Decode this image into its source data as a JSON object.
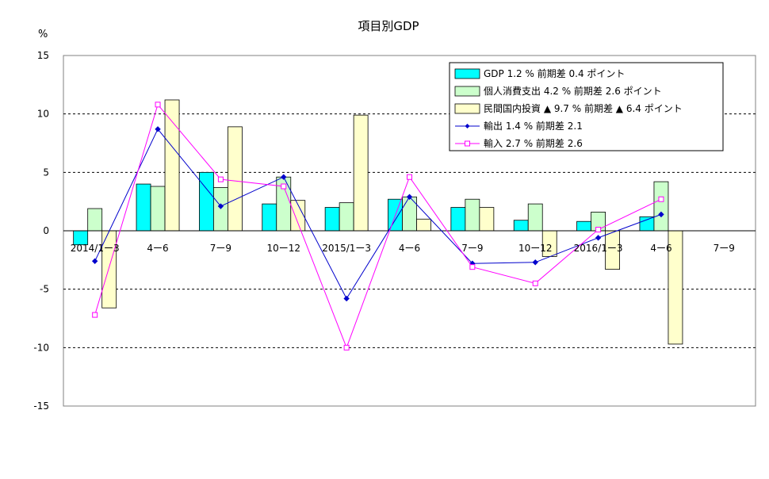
{
  "chart_data": {
    "type": "bar",
    "title": "項目別GDP",
    "ylabel": "%",
    "ylim": [
      -15,
      15
    ],
    "yticks": [
      -15,
      -10,
      -5,
      0,
      5,
      10,
      15
    ],
    "grid": true,
    "legend_position": "top-right",
    "categories": [
      "2014/1ー3",
      "4ー6",
      "7ー9",
      "10ー12",
      "2015/1ー3",
      "4ー6",
      "7ー9",
      "10ー12",
      "2016/1ー3",
      "4ー6",
      "7ー9"
    ],
    "bar_series": [
      {
        "name": "GDP 1.2 % 前期差 0.4 ポイント",
        "color": "#00FFFF",
        "values": [
          -1.2,
          4.0,
          5.0,
          2.3,
          2.0,
          2.7,
          2.0,
          0.9,
          0.8,
          1.2,
          null
        ]
      },
      {
        "name": "個人消費支出 4.2 % 前期差 2.6 ポイント",
        "color": "#CCFFCC",
        "values": [
          1.9,
          3.8,
          3.7,
          4.6,
          2.4,
          2.9,
          2.7,
          2.3,
          1.6,
          4.2,
          null
        ]
      },
      {
        "name": "民間国内投資 ▲ 9.7 % 前期差 ▲ 6.4 ポイント",
        "color": "#FFFFCC",
        "values": [
          -6.6,
          11.2,
          8.9,
          2.6,
          9.9,
          1.0,
          2.0,
          -2.2,
          -3.3,
          -9.7,
          null
        ]
      }
    ],
    "line_series": [
      {
        "name": "輸出 1.4 % 前期差 2.1",
        "color": "#0000CC",
        "marker": "diamond",
        "values": [
          -2.6,
          8.7,
          2.1,
          4.6,
          -5.8,
          2.9,
          -2.8,
          -2.7,
          -0.6,
          1.4,
          null
        ]
      },
      {
        "name": "輸入 2.7 % 前期差 2.6",
        "color": "#FF00FF",
        "marker": "square",
        "values": [
          -7.2,
          10.8,
          4.4,
          3.8,
          -10.0,
          4.6,
          -3.1,
          -4.5,
          0.1,
          2.7,
          null
        ]
      }
    ]
  }
}
